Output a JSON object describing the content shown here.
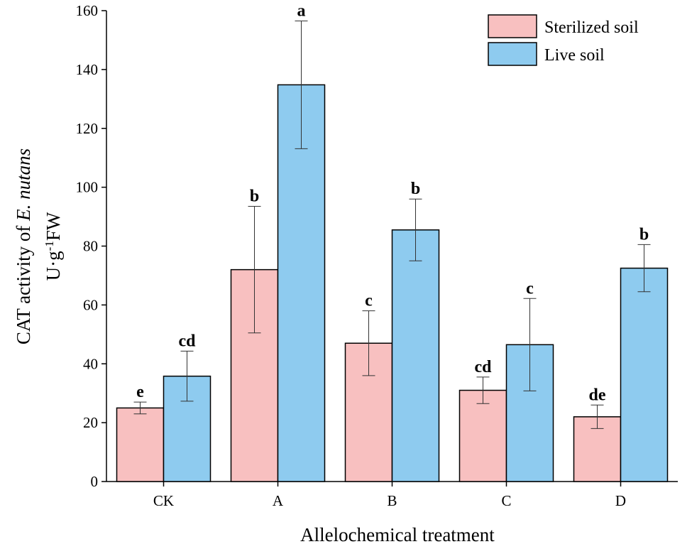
{
  "chart_data": {
    "type": "bar",
    "title": "",
    "xlabel": "Allelochemical treatment",
    "ylabel_parts": [
      "CAT activity of ",
      "E. nutans"
    ],
    "ylabel_units_parts": [
      "U·g",
      "-1",
      "FW"
    ],
    "categories": [
      "CK",
      "A",
      "B",
      "C",
      "D"
    ],
    "ylim": [
      0,
      160
    ],
    "yticks": [
      "0",
      "20",
      "40",
      "60",
      "80",
      "100",
      "120",
      "140",
      "160"
    ],
    "series": [
      {
        "name": "Sterilized soil",
        "color": "#f8c0c0",
        "values": [
          25,
          72,
          47,
          31,
          22
        ],
        "errors": [
          2,
          21.5,
          11,
          4.5,
          4
        ],
        "letters": [
          "e",
          "b",
          "c",
          "cd",
          "de"
        ]
      },
      {
        "name": "Live soil",
        "color": "#8ecbef",
        "values": [
          35.8,
          134.8,
          85.5,
          46.5,
          72.5
        ],
        "errors": [
          8.5,
          21.7,
          10.5,
          15.7,
          8
        ],
        "letters": [
          "cd",
          "a",
          "b",
          "c",
          "b"
        ]
      }
    ],
    "legend_position": "top-right"
  }
}
